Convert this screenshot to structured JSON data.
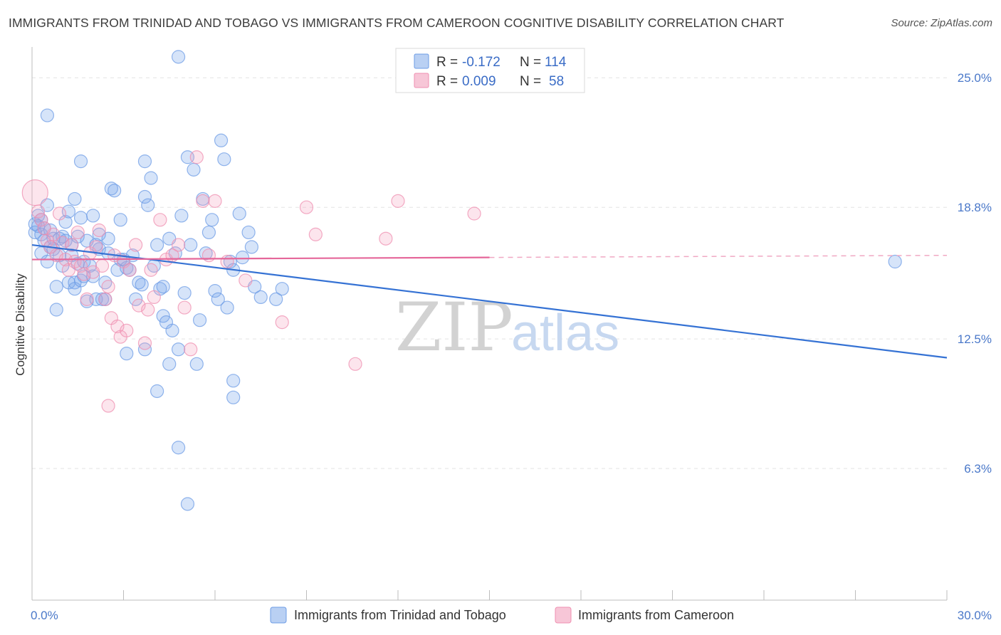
{
  "title": "IMMIGRANTS FROM TRINIDAD AND TOBAGO VS IMMIGRANTS FROM CAMEROON COGNITIVE DISABILITY CORRELATION CHART",
  "source": "Source: ZipAtlas.com",
  "watermark": {
    "zip": "ZIP",
    "atlas": "atlas"
  },
  "legend": {
    "r_label": "R = ",
    "n_label": "N = ",
    "rows": [
      {
        "r": "-0.172",
        "n": "114",
        "color": "#6d9ce6"
      },
      {
        "r": "0.009",
        "n": "58",
        "color": "#ef8fb0"
      }
    ]
  },
  "chart_data": {
    "type": "scatter",
    "title": "IMMIGRANTS FROM TRINIDAD AND TOBAGO VS IMMIGRANTS FROM CAMEROON COGNITIVE DISABILITY CORRELATION CHART",
    "xlabel": "",
    "ylabel": "Cognitive Disability",
    "xlim": [
      0,
      30
    ],
    "ylim": [
      0,
      26.2
    ],
    "x_tick_labels": [
      {
        "value": 0,
        "label": "0.0%"
      },
      {
        "value": 30,
        "label": "30.0%"
      }
    ],
    "y_tick_labels": [
      {
        "value": 25.0,
        "label": "25.0%"
      },
      {
        "value": 18.8,
        "label": "18.8%"
      },
      {
        "value": 12.5,
        "label": "12.5%"
      },
      {
        "value": 6.3,
        "label": "6.3%"
      }
    ],
    "grid": true,
    "legend_position": "bottom",
    "series": [
      {
        "name": "Immigrants from Trinidad and Tobago",
        "color": "#6d9ce6",
        "trend": {
          "x": [
            0,
            30
          ],
          "y": [
            17.0,
            11.6
          ]
        },
        "points": [
          [
            0.1,
            18.0
          ],
          [
            0.1,
            17.6
          ],
          [
            0.2,
            18.4
          ],
          [
            0.2,
            17.9
          ],
          [
            0.3,
            17.5
          ],
          [
            0.3,
            16.6
          ],
          [
            0.3,
            18.2
          ],
          [
            0.4,
            17.8
          ],
          [
            0.4,
            17.2
          ],
          [
            0.5,
            16.2
          ],
          [
            0.5,
            18.9
          ],
          [
            0.6,
            17.7
          ],
          [
            0.6,
            16.9
          ],
          [
            0.7,
            17.3
          ],
          [
            0.7,
            16.8
          ],
          [
            0.8,
            15.0
          ],
          [
            0.8,
            13.9
          ],
          [
            0.9,
            17.3
          ],
          [
            0.9,
            16.5
          ],
          [
            1.0,
            17.4
          ],
          [
            1.0,
            16.0
          ],
          [
            1.1,
            18.1
          ],
          [
            1.1,
            17.2
          ],
          [
            1.2,
            18.6
          ],
          [
            1.2,
            15.2
          ],
          [
            1.3,
            17.0
          ],
          [
            1.3,
            16.5
          ],
          [
            1.4,
            15.2
          ],
          [
            1.4,
            14.9
          ],
          [
            1.5,
            17.4
          ],
          [
            1.5,
            16.1
          ],
          [
            1.6,
            15.3
          ],
          [
            1.6,
            18.3
          ],
          [
            1.7,
            16.2
          ],
          [
            1.7,
            15.5
          ],
          [
            1.8,
            14.3
          ],
          [
            1.8,
            17.2
          ],
          [
            1.9,
            16.0
          ],
          [
            2.0,
            18.4
          ],
          [
            2.0,
            15.5
          ],
          [
            2.1,
            14.4
          ],
          [
            2.2,
            17.5
          ],
          [
            2.2,
            16.8
          ],
          [
            2.3,
            14.4
          ],
          [
            2.4,
            14.4
          ],
          [
            2.4,
            15.2
          ],
          [
            2.5,
            16.6
          ],
          [
            2.5,
            17.3
          ],
          [
            2.6,
            19.7
          ],
          [
            2.7,
            19.6
          ],
          [
            2.8,
            15.8
          ],
          [
            2.9,
            18.2
          ],
          [
            2.9,
            16.3
          ],
          [
            3.0,
            16.3
          ],
          [
            3.1,
            15.9
          ],
          [
            3.2,
            15.8
          ],
          [
            3.3,
            16.5
          ],
          [
            3.4,
            14.4
          ],
          [
            3.5,
            15.2
          ],
          [
            3.6,
            15.1
          ],
          [
            3.7,
            12.0
          ],
          [
            3.7,
            21.0
          ],
          [
            3.8,
            18.9
          ],
          [
            3.9,
            20.2
          ],
          [
            4.0,
            16.0
          ],
          [
            4.1,
            17.0
          ],
          [
            4.2,
            14.9
          ],
          [
            4.3,
            13.6
          ],
          [
            4.3,
            15.0
          ],
          [
            4.4,
            13.3
          ],
          [
            4.5,
            17.3
          ],
          [
            4.6,
            12.9
          ],
          [
            4.7,
            16.6
          ],
          [
            4.8,
            12.0
          ],
          [
            4.9,
            18.4
          ],
          [
            5.0,
            14.7
          ],
          [
            5.1,
            21.2
          ],
          [
            5.2,
            17.0
          ],
          [
            5.3,
            20.6
          ],
          [
            5.4,
            11.3
          ],
          [
            5.5,
            13.4
          ],
          [
            5.6,
            19.2
          ],
          [
            5.7,
            16.6
          ],
          [
            5.8,
            17.6
          ],
          [
            5.9,
            18.2
          ],
          [
            6.0,
            14.8
          ],
          [
            6.1,
            14.4
          ],
          [
            6.2,
            22.0
          ],
          [
            6.3,
            21.1
          ],
          [
            6.4,
            14.0
          ],
          [
            6.5,
            16.2
          ],
          [
            6.6,
            15.8
          ],
          [
            6.8,
            18.5
          ],
          [
            6.9,
            16.4
          ],
          [
            7.1,
            17.6
          ],
          [
            7.2,
            16.9
          ],
          [
            7.3,
            15.0
          ],
          [
            7.5,
            14.5
          ],
          [
            8.0,
            14.4
          ],
          [
            8.2,
            14.9
          ],
          [
            0.5,
            23.2
          ],
          [
            1.6,
            21.0
          ],
          [
            1.4,
            19.2
          ],
          [
            2.1,
            17.0
          ],
          [
            4.8,
            26.0
          ],
          [
            3.1,
            11.8
          ],
          [
            4.5,
            11.3
          ],
          [
            4.1,
            10.0
          ],
          [
            6.6,
            9.7
          ],
          [
            4.8,
            7.3
          ],
          [
            5.1,
            4.6
          ],
          [
            6.6,
            10.5
          ],
          [
            3.7,
            19.3
          ],
          [
            28.3,
            16.2
          ]
        ]
      },
      {
        "name": "Immigrants from Cameroon",
        "color": "#ef8fb0",
        "trend": {
          "x": [
            0,
            15
          ],
          "y": [
            16.3,
            16.4
          ]
        },
        "trend_extension": {
          "x": [
            15,
            30
          ],
          "y": [
            16.4,
            16.5
          ]
        },
        "points": [
          [
            0.1,
            19.5
          ],
          [
            0.2,
            18.6
          ],
          [
            0.3,
            18.2
          ],
          [
            0.4,
            17.8
          ],
          [
            0.5,
            17.2
          ],
          [
            0.6,
            16.9
          ],
          [
            0.7,
            17.5
          ],
          [
            0.8,
            16.5
          ],
          [
            0.9,
            18.5
          ],
          [
            1.0,
            17.1
          ],
          [
            1.1,
            16.3
          ],
          [
            1.2,
            15.8
          ],
          [
            1.3,
            17.0
          ],
          [
            1.4,
            16.2
          ],
          [
            1.5,
            17.6
          ],
          [
            1.6,
            16.0
          ],
          [
            1.7,
            15.6
          ],
          [
            1.8,
            14.4
          ],
          [
            1.9,
            16.6
          ],
          [
            2.0,
            15.7
          ],
          [
            2.1,
            16.9
          ],
          [
            2.2,
            17.7
          ],
          [
            2.3,
            16.0
          ],
          [
            2.4,
            14.4
          ],
          [
            2.5,
            15.0
          ],
          [
            2.6,
            13.5
          ],
          [
            2.7,
            16.5
          ],
          [
            2.8,
            13.1
          ],
          [
            2.9,
            12.6
          ],
          [
            3.0,
            16.2
          ],
          [
            3.1,
            12.9
          ],
          [
            3.2,
            15.8
          ],
          [
            3.4,
            17.0
          ],
          [
            3.5,
            14.1
          ],
          [
            3.7,
            12.3
          ],
          [
            3.8,
            13.9
          ],
          [
            3.9,
            15.8
          ],
          [
            4.0,
            14.5
          ],
          [
            4.2,
            18.2
          ],
          [
            4.4,
            16.3
          ],
          [
            4.6,
            16.5
          ],
          [
            4.8,
            17.0
          ],
          [
            5.0,
            14.0
          ],
          [
            5.2,
            12.0
          ],
          [
            5.4,
            21.2
          ],
          [
            5.6,
            19.1
          ],
          [
            5.8,
            16.5
          ],
          [
            6.0,
            19.1
          ],
          [
            6.4,
            16.2
          ],
          [
            7.0,
            15.3
          ],
          [
            9.0,
            18.8
          ],
          [
            9.3,
            17.5
          ],
          [
            12.0,
            19.1
          ],
          [
            11.6,
            17.3
          ],
          [
            14.5,
            18.5
          ],
          [
            8.2,
            13.3
          ],
          [
            10.6,
            11.3
          ],
          [
            2.5,
            9.3
          ]
        ]
      }
    ]
  }
}
